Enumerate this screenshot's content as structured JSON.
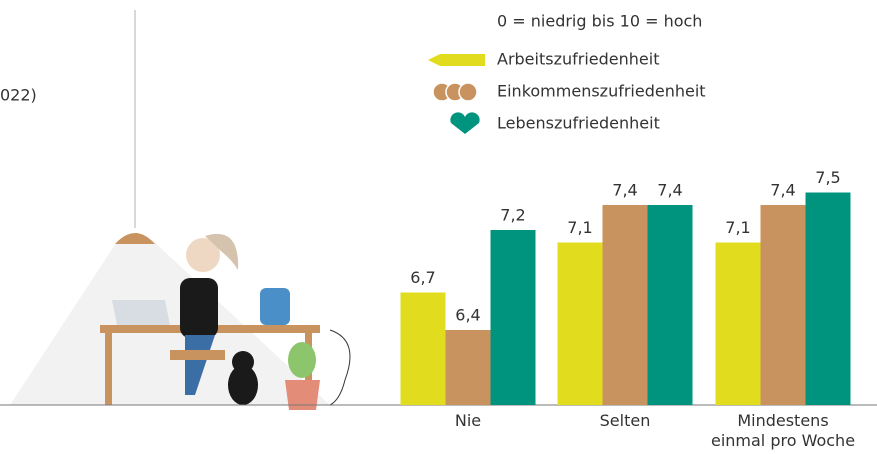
{
  "caption": "022)",
  "chart_data": {
    "type": "bar",
    "legend_title": "0 = niedrig bis 10 = hoch",
    "categories": [
      "Nie",
      "Selten",
      "Mindestens einmal pro Woche"
    ],
    "series": [
      {
        "name": "Arbeitszufriedenheit",
        "color": "#e2dc1f",
        "values": [
          6.7,
          7.1,
          7.1
        ],
        "value_labels": [
          "6,7",
          "7,1",
          "7,1"
        ]
      },
      {
        "name": "Einkommenszufriedenheit",
        "color": "#c8935f",
        "values": [
          6.4,
          7.4,
          7.4
        ],
        "value_labels": [
          "6,4",
          "7,4",
          "7,4"
        ]
      },
      {
        "name": "Lebenszufriedenheit",
        "color": "#00947f",
        "values": [
          7.2,
          7.4,
          7.5
        ],
        "value_labels": [
          "7,2",
          "7,4",
          "7,5"
        ]
      }
    ],
    "ylim": [
      5.8,
      9.0
    ]
  }
}
